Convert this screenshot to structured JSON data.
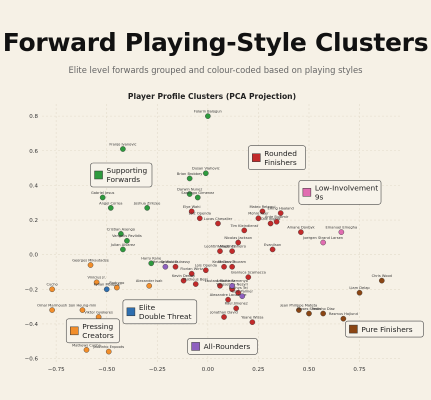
{
  "header": {
    "title": "Forward Playing-Style Clusters",
    "subtitle": "Elite level forwards grouped and colour-coded based on playing styles"
  },
  "chart_data": {
    "type": "scatter",
    "title": "Player Profile Clusters (PCA Projection)",
    "xlim": [
      -0.82,
      0.95
    ],
    "ylim": [
      -0.62,
      0.87
    ],
    "x_ticks": [
      -0.75,
      -0.5,
      -0.25,
      0.0,
      0.25,
      0.5,
      0.75
    ],
    "y_ticks": [
      -0.6,
      -0.4,
      -0.2,
      0.0,
      0.2,
      0.4,
      0.6,
      0.8
    ],
    "x_tick_labels": [
      "−0.75",
      "−0.50",
      "−0.25",
      "0.00",
      "0.25",
      "0.50",
      "0.75"
    ],
    "y_tick_labels": [
      "−0.6",
      "−0.4",
      "−0.2",
      "0.0",
      "0.2",
      "0.4",
      "0.6",
      "0.8"
    ],
    "grid": true,
    "clusters": [
      {
        "name": "Supporting Forwards",
        "color": "#2e9a3e",
        "points": [
          {
            "label": "Folarin Balogun",
            "x": 0.0,
            "y": 0.8
          },
          {
            "label": "Franjo Ivanovic",
            "x": -0.42,
            "y": 0.61
          },
          {
            "label": "Dusan Vlahovic",
            "x": -0.01,
            "y": 0.47
          },
          {
            "label": "Brian Brobbey",
            "x": -0.09,
            "y": 0.44
          },
          {
            "label": "Darwin Nunez",
            "x": -0.09,
            "y": 0.35
          },
          {
            "label": "Santiago Gimenez",
            "x": -0.05,
            "y": 0.33
          },
          {
            "label": "Gabriel Jesus",
            "x": -0.52,
            "y": 0.33
          },
          {
            "label": "Joshua Zirkzee",
            "x": -0.3,
            "y": 0.27
          },
          {
            "label": "Angel Correa",
            "x": -0.48,
            "y": 0.27
          },
          {
            "label": "Cristian Asengo",
            "x": -0.43,
            "y": 0.12
          },
          {
            "label": "Vangelis Pavlidis",
            "x": -0.4,
            "y": 0.08
          },
          {
            "label": "Julian Alvarez",
            "x": -0.42,
            "y": 0.03
          },
          {
            "label": "Harry Kane",
            "x": -0.28,
            "y": -0.05
          }
        ]
      },
      {
        "name": "Rounded Finishers",
        "color": "#c22a2a",
        "points": [
          {
            "label": "Elye Wahi",
            "x": -0.08,
            "y": 0.25
          },
          {
            "label": "Loic Openda",
            "x": -0.04,
            "y": 0.21
          },
          {
            "label": "Lucas Chevalier",
            "x": 0.05,
            "y": 0.18
          },
          {
            "label": "Tim Kleindienst",
            "x": 0.18,
            "y": 0.14
          },
          {
            "label": "Mateo Retegui",
            "x": 0.27,
            "y": 0.25
          },
          {
            "label": "Mohre Keer",
            "x": 0.25,
            "y": 0.21
          },
          {
            "label": "Erling Haaland",
            "x": 0.36,
            "y": 0.24
          },
          {
            "label": "Olle Ingard",
            "x": 0.31,
            "y": 0.18
          },
          {
            "label": "Ante Budimir",
            "x": 0.34,
            "y": 0.19
          },
          {
            "label": "Amane Dovbyk",
            "x": 0.46,
            "y": 0.13
          },
          {
            "label": "Nicolas Jackson",
            "x": 0.15,
            "y": 0.07
          },
          {
            "label": "Leohtim Martinez",
            "x": 0.06,
            "y": 0.02
          },
          {
            "label": "Vangel Pinheiro",
            "x": 0.12,
            "y": 0.02
          },
          {
            "label": "Evanilson",
            "x": 0.32,
            "y": 0.03
          },
          {
            "label": "Serhou Guirassy",
            "x": -0.16,
            "y": -0.07
          },
          {
            "label": "Florian Wirtz",
            "x": -0.08,
            "y": -0.11
          },
          {
            "label": "Lois Openda",
            "x": -0.01,
            "y": -0.09
          },
          {
            "label": "Kevin Dennis",
            "x": 0.08,
            "y": -0.07
          },
          {
            "label": "Kevin Deslay",
            "x": -0.12,
            "y": -0.15
          },
          {
            "label": "Marcus Thuram",
            "x": 0.12,
            "y": -0.07
          },
          {
            "label": "Matheus Bess",
            "x": -0.06,
            "y": -0.17
          },
          {
            "label": "Gianluca Scamacca",
            "x": 0.2,
            "y": -0.13
          },
          {
            "label": "Lautaro Martinez",
            "x": 0.06,
            "y": -0.18
          },
          {
            "label": "Youssef En-Nesyri",
            "x": 0.12,
            "y": -0.2
          },
          {
            "label": "Mathys Tel",
            "x": 0.15,
            "y": -0.22
          },
          {
            "label": "Alexandre Lacazette",
            "x": 0.1,
            "y": -0.26
          },
          {
            "label": "Raul Jimenez",
            "x": 0.14,
            "y": -0.31
          },
          {
            "label": "Jonathan David",
            "x": 0.08,
            "y": -0.36
          },
          {
            "label": "Yoane Wissa",
            "x": 0.22,
            "y": -0.39
          }
        ]
      },
      {
        "name": "Low-Involvement 9s",
        "color": "#e16db1",
        "points": [
          {
            "label": "Emanuel Emegha",
            "x": 0.66,
            "y": 0.13
          },
          {
            "label": "Joergen Strand Larsen",
            "x": 0.57,
            "y": 0.07
          }
        ]
      },
      {
        "name": "Pure Finishers",
        "color": "#8b4513",
        "points": [
          {
            "label": "Chris Wood",
            "x": 0.86,
            "y": -0.15
          },
          {
            "label": "Liam Delap",
            "x": 0.75,
            "y": -0.22
          },
          {
            "label": "Jean Philippe Mateta",
            "x": 0.45,
            "y": -0.32
          },
          {
            "label": "Moses Simon",
            "x": 0.5,
            "y": -0.34
          },
          {
            "label": "Fedinho Diaz",
            "x": 0.57,
            "y": -0.34
          },
          {
            "label": "Rasmus Hojlund",
            "x": 0.67,
            "y": -0.37
          }
        ]
      },
      {
        "name": "Pressing Creators",
        "color": "#f28e2b",
        "points": [
          {
            "label": "Georges Mikautadze",
            "x": -0.58,
            "y": -0.06
          },
          {
            "label": "Cucho",
            "x": -0.77,
            "y": -0.2
          },
          {
            "label": "Vinicius Jr.",
            "x": -0.55,
            "y": -0.16
          },
          {
            "label": "Rodrygo",
            "x": -0.45,
            "y": -0.19
          },
          {
            "label": "Alexander Isak",
            "x": -0.29,
            "y": -0.18
          },
          {
            "label": "Omar Marmoush",
            "x": -0.77,
            "y": -0.32
          },
          {
            "label": "Son Heung-min",
            "x": -0.62,
            "y": -0.32
          },
          {
            "label": "Viktor Gyokeres",
            "x": -0.54,
            "y": -0.36
          },
          {
            "label": "Mathews Cunha",
            "x": -0.6,
            "y": -0.55
          },
          {
            "label": "Jaozinho Enpoots",
            "x": -0.49,
            "y": -0.56
          }
        ]
      },
      {
        "name": "Elite Double Threat",
        "color": "#2e6fb0",
        "points": [
          {
            "label": "Kylian Mbappe",
            "x": -0.5,
            "y": -0.2
          },
          {
            "label": "Mohamed Salah",
            "x": -0.6,
            "y": -0.41
          }
        ]
      },
      {
        "name": "All-Rounders",
        "color": "#8e60bf",
        "points": [
          {
            "label": "Heung Wulder",
            "x": -0.21,
            "y": -0.07
          },
          {
            "label": "Antoine Semenyo",
            "x": 0.12,
            "y": -0.18
          },
          {
            "label": "Cole Palmer",
            "x": 0.17,
            "y": -0.24
          }
        ]
      }
    ],
    "callouts": [
      {
        "text": "Supporting Forwards",
        "cluster": 0,
        "anchor": [
          -0.58,
          0.46
        ]
      },
      {
        "text": "Rounded Finishers",
        "cluster": 1,
        "anchor": [
          0.2,
          0.56
        ]
      },
      {
        "text": "Low-Involvement 9s",
        "cluster": 2,
        "anchor": [
          0.45,
          0.36
        ]
      },
      {
        "text": "Elite Double Threat",
        "cluster": 5,
        "anchor": [
          -0.42,
          -0.33
        ]
      },
      {
        "text": "Pressing Creators",
        "cluster": 4,
        "anchor": [
          -0.7,
          -0.44
        ]
      },
      {
        "text": "All-Rounders",
        "cluster": 6,
        "anchor": [
          -0.1,
          -0.53
        ]
      },
      {
        "text": "Pure Finishers",
        "cluster": 3,
        "anchor": [
          0.68,
          -0.43
        ]
      }
    ]
  }
}
